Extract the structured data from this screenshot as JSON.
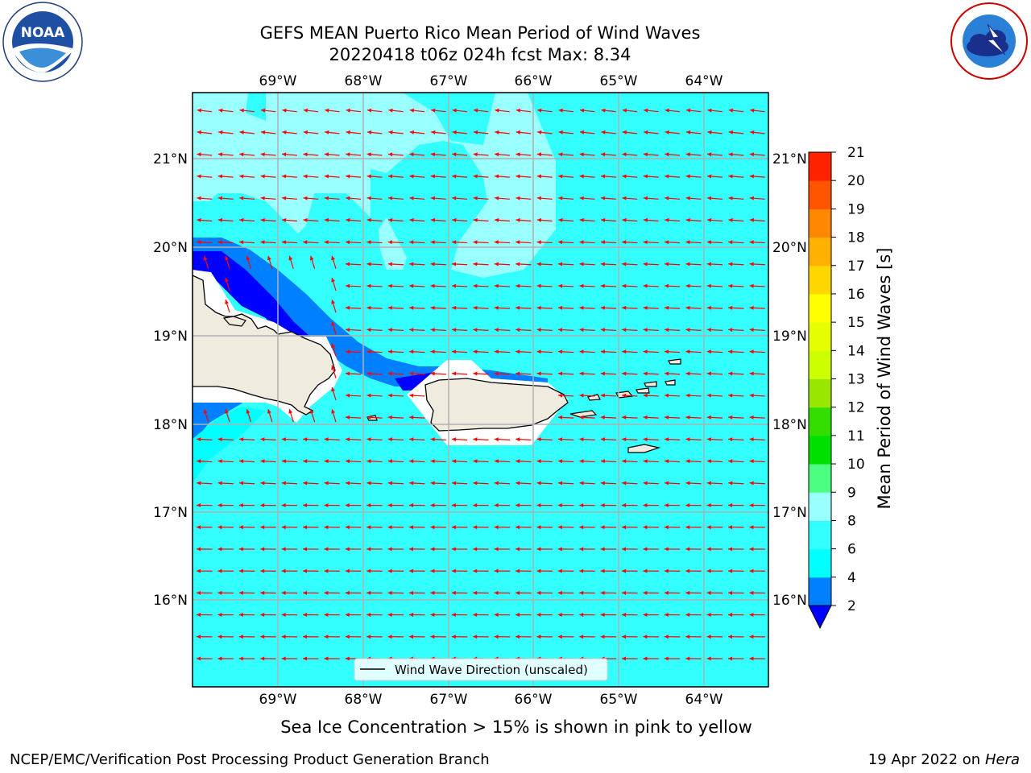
{
  "header": {
    "title_line1": "GEFS MEAN Puerto Rico Mean Period of Wind Waves",
    "title_line2": "20220418 t06z 024h fcst   Max: 8.34"
  },
  "logos": {
    "left": {
      "name": "noaa-logo",
      "text": "NOAA",
      "ring_text": "NATIONAL OCEANIC AND ATMOSPHERIC ADMINISTRATION · U.S. DEPARTMENT OF COMMERCE"
    },
    "right": {
      "name": "nws-logo",
      "ring_text": "NATIONAL WEATHER SERVICE"
    }
  },
  "map": {
    "lon_labels": [
      "69°W",
      "68°W",
      "67°W",
      "66°W",
      "65°W",
      "64°W"
    ],
    "lat_labels": [
      "21°N",
      "20°N",
      "19°N",
      "18°N",
      "17°N",
      "16°N"
    ],
    "legend_label": "Wind Wave Direction (unscaled)",
    "colors": {
      "ocean": "#33ffff",
      "light": "#99ffff",
      "mid_blue": "#0080ff",
      "deep_blue": "#0000ff",
      "land": "#efecdf",
      "arrow": "#ff0000",
      "grid": "#b0b0b0"
    }
  },
  "colorbar": {
    "label": "Mean Period of Wind Waves [s]",
    "ticks": [
      "2",
      "4",
      "6",
      "8",
      "9",
      "10",
      "11",
      "12",
      "13",
      "14",
      "15",
      "16",
      "17",
      "18",
      "19",
      "20",
      "21"
    ],
    "colors": [
      "#0080ff",
      "#00ffff",
      "#33ffff",
      "#99ffff",
      "#4dff80",
      "#00e000",
      "#33dd00",
      "#99e600",
      "#ccff00",
      "#e6ff00",
      "#ffff00",
      "#ffd700",
      "#ffb000",
      "#ff8800",
      "#ff5500",
      "#ff2200",
      "#ff0000"
    ],
    "under_color": "#0000ff"
  },
  "footer": {
    "caption": "Sea Ice Concentration > 15% is shown in pink to yellow",
    "left": "NCEP/EMC/Verification Post Processing Product Generation Branch",
    "right_date": "19 Apr 2022 on ",
    "right_machine": "Hera"
  }
}
